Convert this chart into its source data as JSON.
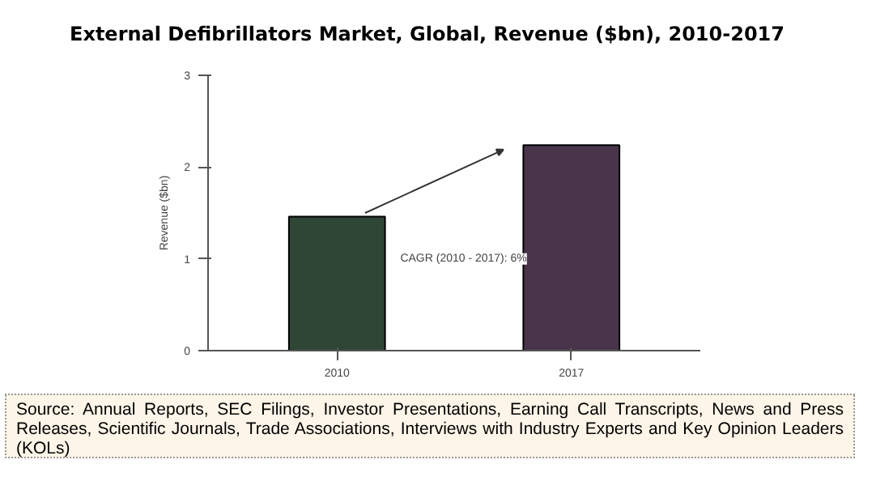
{
  "chart_data": {
    "type": "bar",
    "title": "External Defibrillators Market, Global, Revenue ($bn), 2010-2017",
    "ylabel": "Revenue ($bn)",
    "categories": [
      "2010",
      "2017"
    ],
    "values": [
      1.46,
      2.24
    ],
    "colors": [
      "#2f4636",
      "#49344a"
    ],
    "ylim": [
      0,
      3
    ],
    "yticks": [
      0,
      1,
      2,
      3
    ],
    "grid": false,
    "annotations": [
      "CAGR (2010 - 2017): 6%",
      "Source: Annual Reports, SEC Filings, Investor Presentations, Earning Call Transcripts, News and Press Releases, Scientific Journals, Trade Associations, Interviews with Industry Experts and Key Opinion Leaders (KOLs)"
    ]
  }
}
